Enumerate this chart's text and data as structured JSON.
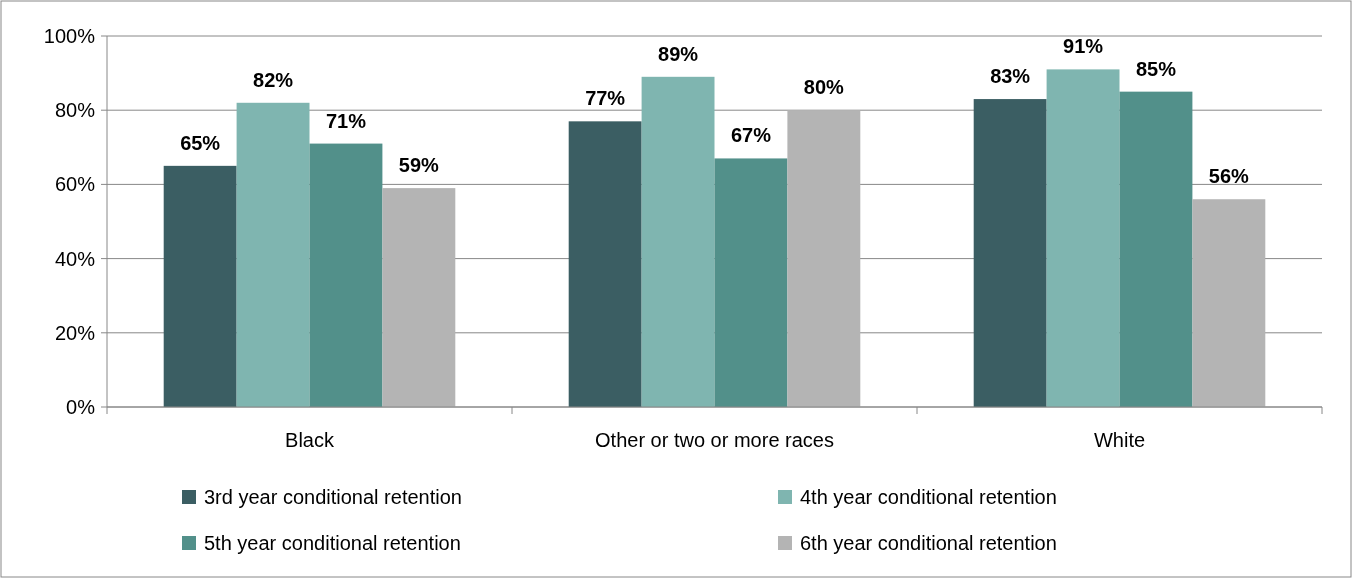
{
  "chart_data": {
    "type": "bar",
    "categories": [
      "Black",
      "Other or two or more races",
      "White"
    ],
    "series": [
      {
        "name": "3rd year conditional retention",
        "color": "#3b5e63",
        "values": [
          65,
          77,
          83
        ]
      },
      {
        "name": "4th year conditional retention",
        "color": "#7fb5b0",
        "values": [
          82,
          89,
          91
        ]
      },
      {
        "name": "5th year conditional retention",
        "color": "#52908a",
        "values": [
          71,
          67,
          85
        ]
      },
      {
        "name": "6th year conditional retention",
        "color": "#b4b4b4",
        "values": [
          59,
          80,
          56
        ]
      }
    ],
    "ylim": [
      0,
      100
    ],
    "yticks": [
      {
        "value": 0,
        "label": "0%"
      },
      {
        "value": 20,
        "label": "20%"
      },
      {
        "value": 40,
        "label": "40%"
      },
      {
        "value": 60,
        "label": "60%"
      },
      {
        "value": 80,
        "label": "80%"
      },
      {
        "value": 100,
        "label": "100%"
      }
    ],
    "grid": "y",
    "legend": "bottom",
    "value_labels": [
      [
        "65%",
        "77%",
        "83%"
      ],
      [
        "82%",
        "89%",
        "91%"
      ],
      [
        "71%",
        "67%",
        "85%"
      ],
      [
        "59%",
        "80%",
        "56%"
      ]
    ]
  }
}
